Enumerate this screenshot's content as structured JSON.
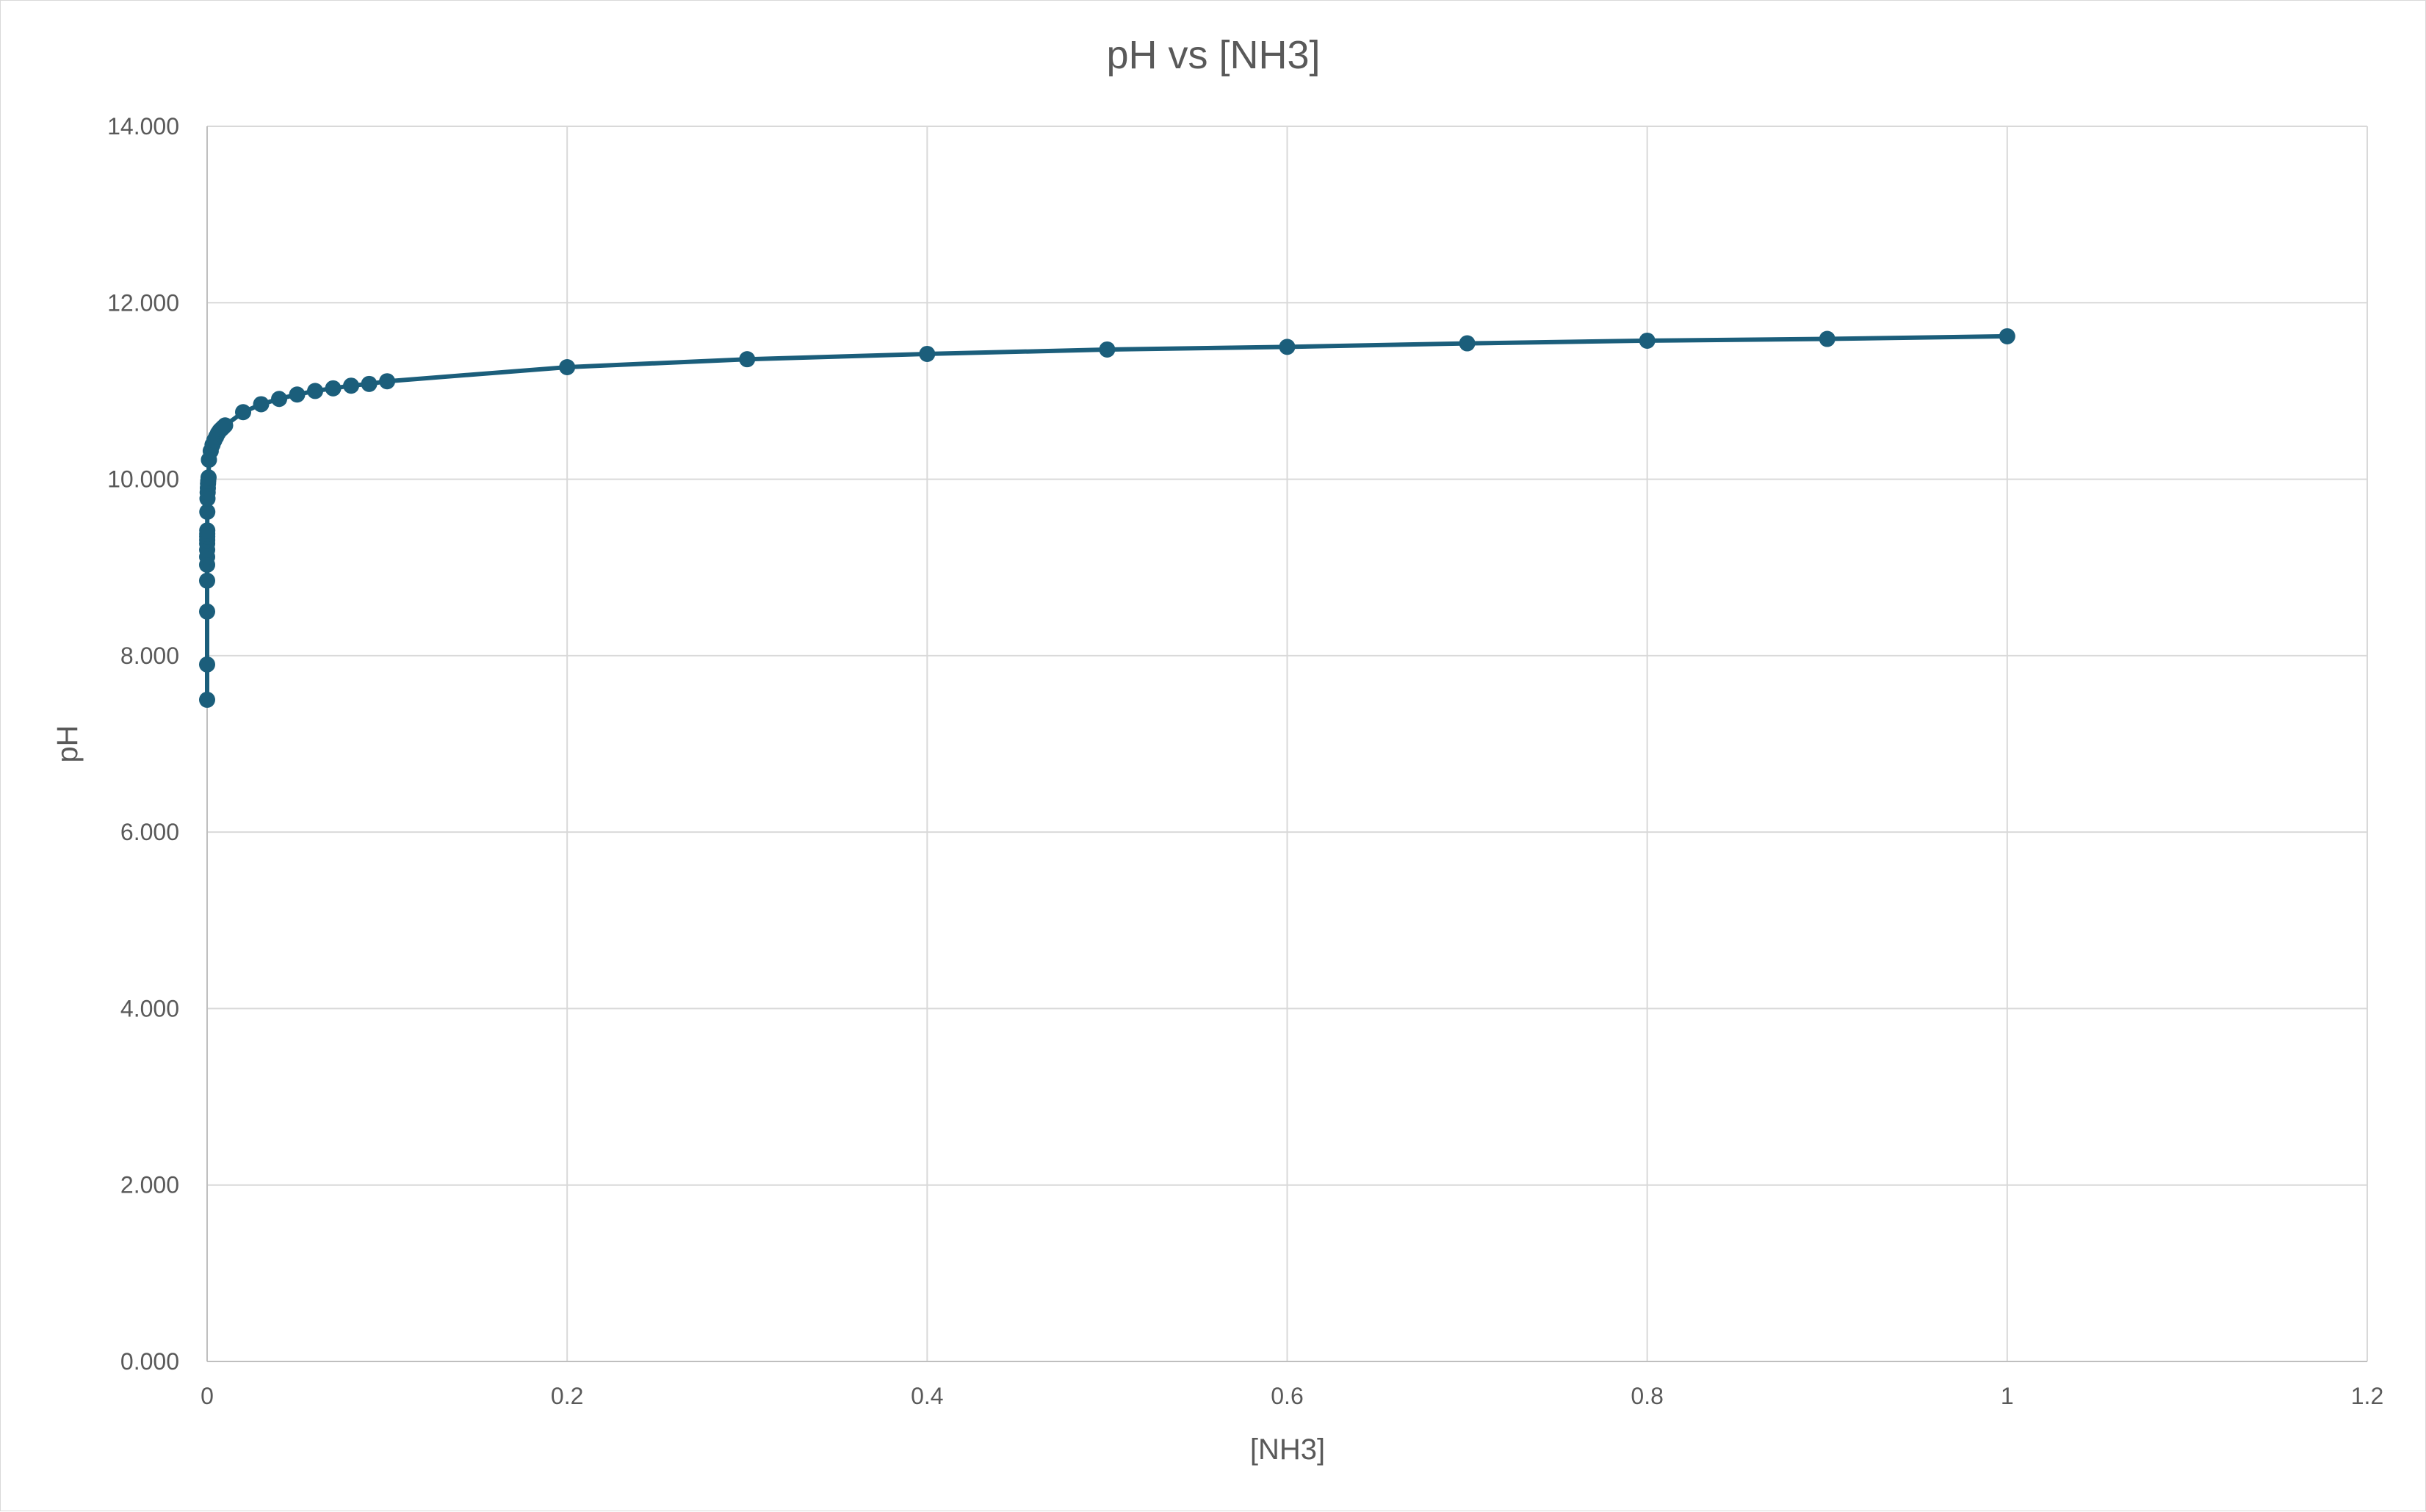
{
  "chart_data": {
    "type": "scatter",
    "title": "pH vs [NH3]",
    "xlabel": "[NH3]",
    "ylabel": "pH",
    "xlim": [
      0,
      1.2
    ],
    "ylim": [
      0,
      14
    ],
    "x_ticks": [
      "0",
      "0.2",
      "0.4",
      "0.6",
      "0.8",
      "1",
      "1.2"
    ],
    "y_ticks": [
      "0.000",
      "2.000",
      "4.000",
      "6.000",
      "8.000",
      "10.000",
      "12.000",
      "14.000"
    ],
    "grid": true,
    "legend": "none",
    "lines_connected": true,
    "series": [
      {
        "color": "#1b5e7b",
        "x": [
          1e-07,
          3e-07,
          1e-06,
          3e-06,
          6e-06,
          1e-05,
          2e-05,
          3e-05,
          4e-05,
          5e-05,
          6e-05,
          8e-05,
          0.0001,
          0.0002,
          0.0003,
          0.0004,
          0.0005,
          0.0006,
          0.0008,
          0.001,
          0.002,
          0.003,
          0.004,
          0.005,
          0.006,
          0.007,
          0.008,
          0.009,
          0.01,
          0.02,
          0.03,
          0.04,
          0.05,
          0.06,
          0.07,
          0.08,
          0.09,
          0.1,
          0.2,
          0.3,
          0.4,
          0.5,
          0.6,
          0.7,
          0.8,
          0.9,
          1.0
        ],
        "values": [
          7.5,
          7.9,
          8.5,
          8.85,
          9.03,
          9.12,
          9.2,
          9.27,
          9.31,
          9.35,
          9.38,
          9.42,
          9.63,
          9.78,
          9.85,
          9.9,
          9.95,
          9.98,
          10.02,
          10.22,
          10.32,
          10.39,
          10.44,
          10.48,
          10.52,
          10.55,
          10.57,
          10.59,
          10.61,
          10.76,
          10.85,
          10.91,
          10.96,
          11.0,
          11.03,
          11.06,
          11.08,
          11.11,
          11.27,
          11.36,
          11.42,
          11.47,
          11.5,
          11.54,
          11.57,
          11.59,
          11.62
        ]
      }
    ]
  }
}
